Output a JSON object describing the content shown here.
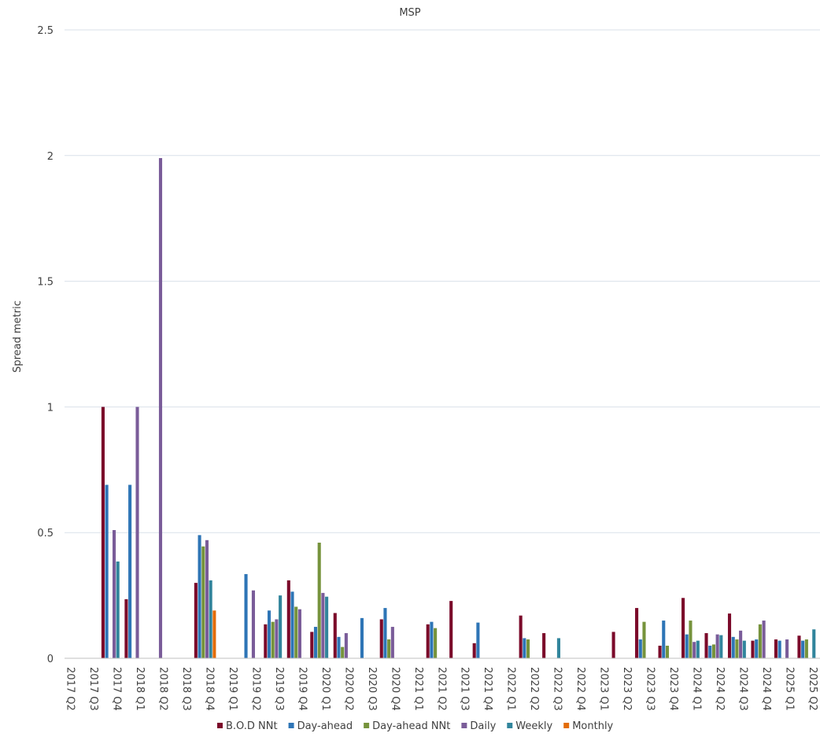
{
  "chart_data": {
    "type": "bar",
    "title": "MSP",
    "ylabel": "Spread metric",
    "xlabel": "",
    "ylim": [
      0,
      2.5
    ],
    "yticks": [
      "0",
      "0.5",
      "1",
      "1.5",
      "2",
      "2.5"
    ],
    "ytick_values": [
      0,
      0.5,
      1,
      1.5,
      2,
      2.5
    ],
    "grid": true,
    "legend_position": "bottom",
    "categories": [
      "2017 Q2",
      "2017 Q3",
      "2017 Q4",
      "2018 Q1",
      "2018 Q2",
      "2018 Q3",
      "2018 Q4",
      "2019 Q1",
      "2019 Q2",
      "2019 Q3",
      "2019 Q4",
      "2020 Q1",
      "2020 Q2",
      "2020 Q3",
      "2020 Q4",
      "2021 Q1",
      "2021 Q2",
      "2021 Q3",
      "2021 Q4",
      "2022 Q1",
      "2022 Q2",
      "2022 Q3",
      "2022 Q4",
      "2023 Q1",
      "2023 Q2",
      "2023 Q3",
      "2023 Q4",
      "2024 Q1",
      "2024 Q2",
      "2024 Q3",
      "2024 Q4",
      "2025 Q1",
      "2025 Q2"
    ],
    "series": [
      {
        "name": "B.O.D NNt",
        "color": "#7b0a2a",
        "values": [
          null,
          1.0,
          0.235,
          null,
          null,
          0.3,
          null,
          null,
          0.135,
          0.31,
          0.105,
          0.18,
          null,
          0.155,
          null,
          0.135,
          0.228,
          0.06,
          null,
          0.17,
          0.1,
          null,
          null,
          0.105,
          0.2,
          0.05,
          0.24,
          0.1,
          0.178,
          0.07,
          0.075,
          0.09,
          0.145
        ]
      },
      {
        "name": "Day-ahead",
        "color": "#2e75b6",
        "values": [
          null,
          0.69,
          0.69,
          null,
          null,
          0.49,
          null,
          0.335,
          0.19,
          0.265,
          0.125,
          0.085,
          0.16,
          0.2,
          null,
          0.145,
          null,
          0.142,
          null,
          0.08,
          null,
          null,
          null,
          null,
          0.075,
          0.15,
          0.095,
          0.05,
          0.085,
          0.075,
          0.07,
          0.07,
          0.08
        ]
      },
      {
        "name": "Day-ahead NNt",
        "color": "#76933c",
        "values": [
          null,
          null,
          null,
          null,
          null,
          0.445,
          null,
          null,
          0.145,
          0.205,
          0.46,
          0.045,
          null,
          0.075,
          null,
          0.12,
          null,
          null,
          null,
          0.075,
          null,
          null,
          null,
          null,
          0.145,
          0.05,
          0.15,
          0.055,
          0.075,
          0.135,
          null,
          0.075,
          0.11
        ]
      },
      {
        "name": "Daily",
        "color": "#7a5c99",
        "values": [
          null,
          0.51,
          1.0,
          1.99,
          null,
          0.47,
          null,
          0.27,
          0.155,
          0.195,
          0.26,
          0.1,
          null,
          0.125,
          null,
          null,
          null,
          null,
          null,
          null,
          null,
          null,
          null,
          null,
          null,
          null,
          0.065,
          0.095,
          0.11,
          0.15,
          0.075,
          null,
          0.1
        ]
      },
      {
        "name": "Weekly",
        "color": "#31859c",
        "values": [
          null,
          0.385,
          null,
          null,
          null,
          0.31,
          null,
          null,
          0.25,
          null,
          0.245,
          null,
          null,
          null,
          null,
          null,
          null,
          null,
          null,
          null,
          0.08,
          null,
          null,
          null,
          null,
          null,
          0.07,
          0.092,
          0.07,
          null,
          null,
          0.115,
          0.085
        ]
      },
      {
        "name": "Monthly",
        "color": "#e36c09",
        "values": [
          null,
          null,
          null,
          null,
          null,
          0.19,
          null,
          null,
          null,
          null,
          null,
          null,
          null,
          null,
          null,
          null,
          null,
          null,
          null,
          null,
          null,
          null,
          null,
          null,
          null,
          null,
          null,
          null,
          null,
          null,
          null,
          null,
          0.04
        ]
      }
    ]
  }
}
